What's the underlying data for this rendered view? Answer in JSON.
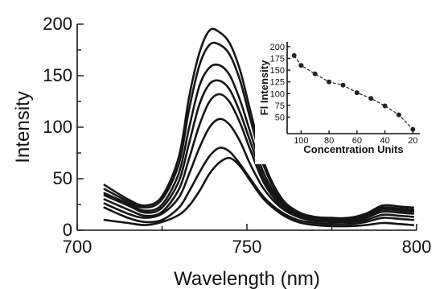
{
  "chart_data": [
    {
      "type": "line",
      "title": "",
      "xlabel": "Wavelength (nm)",
      "ylabel": "Intensity",
      "xlim": [
        700,
        800
      ],
      "ylim": [
        0,
        200
      ],
      "xticks": [
        700,
        750,
        800
      ],
      "yticks": [
        0,
        50,
        100,
        150,
        200
      ],
      "grid": false,
      "series": [
        {
          "x": [
            708,
            715,
            720,
            725,
            730,
            733,
            736,
            739,
            742,
            745,
            748,
            751,
            755,
            760,
            765,
            770,
            775,
            780,
            785,
            790,
            795,
            799
          ],
          "values": [
            10,
            7,
            5,
            8,
            15,
            24,
            38,
            55,
            66,
            70,
            62,
            48,
            30,
            16,
            8,
            5,
            4,
            4,
            5,
            7,
            6,
            5
          ]
        },
        {
          "x": [
            708,
            715,
            720,
            725,
            730,
            733,
            736,
            739,
            742,
            745,
            748,
            751,
            755,
            760,
            765,
            770,
            775,
            780,
            785,
            790,
            795,
            799
          ],
          "values": [
            22,
            12,
            8,
            10,
            22,
            38,
            56,
            72,
            80,
            76,
            64,
            50,
            32,
            18,
            10,
            7,
            6,
            6,
            8,
            12,
            11,
            10
          ]
        },
        {
          "x": [
            708,
            715,
            720,
            725,
            730,
            733,
            736,
            739,
            742,
            745,
            748,
            751,
            755,
            760,
            765,
            770,
            775,
            780,
            785,
            790,
            795,
            799
          ],
          "values": [
            26,
            16,
            12,
            16,
            32,
            55,
            80,
            100,
            108,
            102,
            86,
            64,
            40,
            22,
            13,
            9,
            8,
            8,
            10,
            15,
            14,
            13
          ]
        },
        {
          "x": [
            708,
            715,
            720,
            725,
            730,
            733,
            736,
            739,
            742,
            745,
            748,
            751,
            755,
            760,
            765,
            770,
            775,
            780,
            785,
            790,
            795,
            799
          ],
          "values": [
            30,
            20,
            14,
            18,
            40,
            70,
            102,
            125,
            132,
            124,
            104,
            78,
            46,
            24,
            14,
            10,
            9,
            9,
            12,
            18,
            17,
            16
          ]
        },
        {
          "x": [
            708,
            715,
            720,
            725,
            730,
            733,
            736,
            739,
            742,
            745,
            748,
            751,
            755,
            760,
            765,
            770,
            775,
            780,
            785,
            790,
            795,
            799
          ],
          "values": [
            34,
            24,
            17,
            22,
            48,
            85,
            122,
            142,
            145,
            136,
            114,
            86,
            50,
            26,
            15,
            11,
            10,
            10,
            13,
            20,
            19,
            18
          ]
        },
        {
          "x": [
            708,
            715,
            720,
            725,
            730,
            733,
            736,
            739,
            742,
            745,
            748,
            751,
            755,
            760,
            765,
            770,
            775,
            780,
            785,
            790,
            795,
            799
          ],
          "values": [
            36,
            26,
            19,
            25,
            56,
            100,
            140,
            158,
            160,
            150,
            126,
            95,
            55,
            28,
            16,
            12,
            11,
            11,
            14,
            21,
            20,
            19
          ]
        },
        {
          "x": [
            708,
            715,
            720,
            725,
            730,
            733,
            736,
            739,
            742,
            745,
            748,
            751,
            755,
            760,
            765,
            770,
            775,
            780,
            785,
            790,
            795,
            799
          ],
          "values": [
            40,
            28,
            22,
            30,
            65,
            118,
            160,
            180,
            180,
            170,
            145,
            108,
            62,
            30,
            17,
            12,
            11,
            11,
            15,
            22,
            21,
            20
          ]
        },
        {
          "x": [
            708,
            715,
            720,
            725,
            730,
            733,
            736,
            739,
            742,
            745,
            748,
            751,
            755,
            760,
            765,
            770,
            775,
            780,
            785,
            790,
            795,
            799
          ],
          "values": [
            44,
            30,
            24,
            33,
            72,
            130,
            172,
            194,
            192,
            181,
            155,
            116,
            66,
            32,
            18,
            13,
            12,
            12,
            16,
            24,
            23,
            22
          ]
        }
      ]
    },
    {
      "type": "line",
      "title": "",
      "xlabel": "Concentration Units",
      "ylabel": "Fl Intensity",
      "xlim": [
        110,
        15
      ],
      "ylim": [
        15,
        210
      ],
      "xticks": [
        100,
        80,
        60,
        40,
        20
      ],
      "yticks": [
        50,
        75,
        100,
        125,
        150,
        175,
        200
      ],
      "grid": false,
      "x": [
        105,
        100,
        90,
        80,
        70,
        60,
        50,
        40,
        30,
        20
      ],
      "values": [
        181,
        160,
        142,
        125,
        118,
        102,
        90,
        74,
        55,
        24
      ]
    }
  ]
}
